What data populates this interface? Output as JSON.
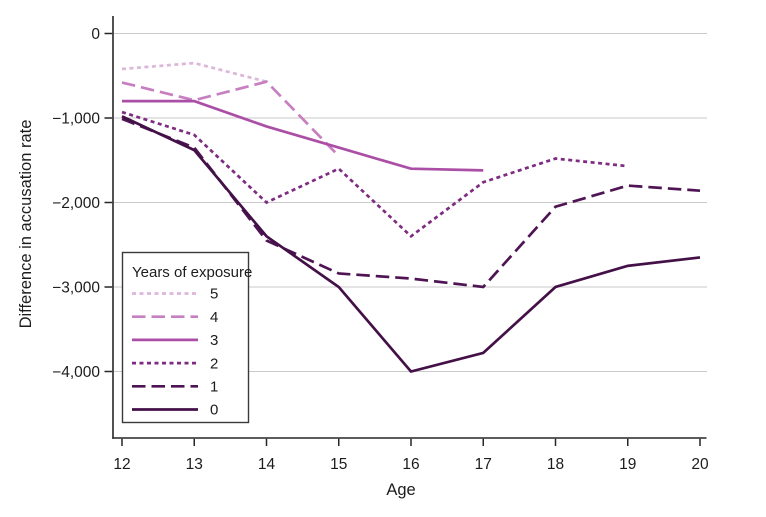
{
  "chart_data": {
    "type": "line",
    "title": "",
    "xlabel": "Age",
    "ylabel": "Difference in accusation rate",
    "x_ticks": [
      12,
      13,
      14,
      15,
      16,
      17,
      18,
      19,
      20
    ],
    "x_tick_labels": [
      "12",
      "13",
      "14",
      "15",
      "16",
      "17",
      "18",
      "19",
      "20"
    ],
    "y_ticks": [
      0,
      -1000,
      -2000,
      -3000,
      -4000
    ],
    "y_tick_labels": [
      "0",
      "−1,000",
      "−2,000",
      "−3,000",
      "−4,000"
    ],
    "xlim": [
      12,
      20
    ],
    "ylim": [
      -4800,
      250
    ],
    "grid": "horizontal-only",
    "gridline_color": "#cacaca",
    "axis_color": "#262626",
    "background_color": "#ffffff",
    "legend": {
      "title": "Years of exposure",
      "position": "bottom-left",
      "items": [
        "5",
        "4",
        "3",
        "2",
        "1",
        "0"
      ]
    },
    "series": [
      {
        "name": "5",
        "exposure_years": 5,
        "pattern": "dot",
        "color": "#dcb7da",
        "x": [
          12,
          13,
          14
        ],
        "y": [
          -420,
          -350,
          -570
        ]
      },
      {
        "name": "4",
        "exposure_years": 4,
        "pattern": "longdash",
        "color": "#c77fc1",
        "x": [
          12,
          13,
          14,
          15
        ],
        "y": [
          -580,
          -790,
          -570,
          -1450
        ]
      },
      {
        "name": "3",
        "exposure_years": 3,
        "pattern": "solid",
        "color": "#ab4fa6",
        "x": [
          12,
          13,
          14,
          15,
          16,
          17
        ],
        "y": [
          -800,
          -800,
          -1100,
          -1350,
          -1600,
          -1620
        ]
      },
      {
        "name": "2",
        "exposure_years": 2,
        "pattern": "dot",
        "color": "#7d2c81",
        "x": [
          12,
          13,
          14,
          15,
          16,
          17,
          18,
          19
        ],
        "y": [
          -930,
          -1200,
          -2000,
          -1600,
          -2400,
          -1760,
          -1480,
          -1570
        ]
      },
      {
        "name": "1",
        "exposure_years": 1,
        "pattern": "longdash",
        "color": "#4e1453",
        "x": [
          12,
          13,
          14,
          15,
          16,
          17,
          18,
          19,
          20
        ],
        "y": [
          -1010,
          -1350,
          -2450,
          -2840,
          -2900,
          -3000,
          -2050,
          -1800,
          -1860
        ]
      },
      {
        "name": "0",
        "exposure_years": 0,
        "pattern": "solid",
        "color": "#431047",
        "x": [
          12,
          13,
          14,
          15,
          16,
          17,
          18,
          19,
          20
        ],
        "y": [
          -980,
          -1380,
          -2400,
          -3000,
          -4000,
          -3780,
          -3000,
          -2750,
          -2650
        ]
      }
    ]
  }
}
